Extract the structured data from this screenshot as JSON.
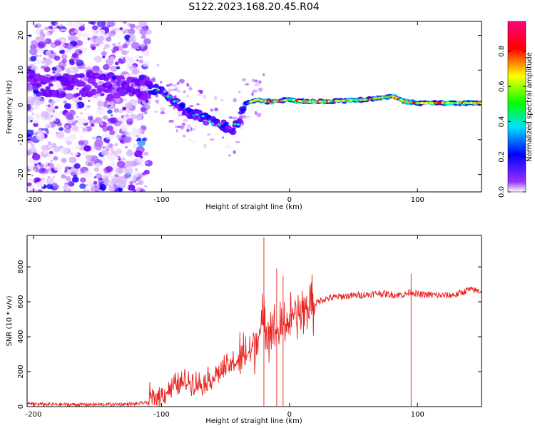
{
  "title": "S122.2023.168.20.45.R04",
  "chart_data": [
    {
      "type": "heatmap",
      "xlabel": "Height of straight line (km)",
      "ylabel": "Frequency (Hz)",
      "xlim": [
        -205,
        150
      ],
      "ylim": [
        -25,
        24
      ],
      "xticks": [
        -200,
        -100,
        0,
        100
      ],
      "yticks": [
        -20,
        -10,
        0,
        10,
        20
      ],
      "colorbar": {
        "label": "Normalized spectral amplitude",
        "range": [
          0.0,
          0.97
        ],
        "ticks": [
          0.0,
          0.2,
          0.4,
          0.6,
          0.8
        ],
        "tick_labels": [
          "0.0",
          "0.2",
          "0.4",
          "0.6",
          "0.8"
        ],
        "colormap": [
          "#ffffff",
          "#7a00ff",
          "#0000ff",
          "#00e0ff",
          "#00ff00",
          "#ffff00",
          "#ff0000",
          "#ff0080"
        ]
      },
      "ridge": {
        "x": [
          -205,
          -180,
          -150,
          -125,
          -110,
          -100,
          -90,
          -80,
          -70,
          -60,
          -50,
          -45,
          -40,
          -35,
          -30,
          -25,
          -20,
          -10,
          0,
          10,
          30,
          60,
          80,
          90,
          100,
          120,
          150
        ],
        "y": [
          7,
          5,
          6,
          5,
          5,
          4,
          1,
          -2,
          -3,
          -5,
          -6,
          -7,
          -5,
          0,
          1,
          1.5,
          1,
          1,
          1.5,
          1,
          1,
          1.5,
          2.5,
          1,
          0.5,
          0.5,
          0.5
        ]
      }
    },
    {
      "type": "line",
      "xlabel": "Height of straight line (km)",
      "ylabel": "SNR (10 * v/v)",
      "xlim": [
        -205,
        150
      ],
      "ylim": [
        0,
        980
      ],
      "xticks": [
        -200,
        -100,
        0,
        100
      ],
      "yticks": [
        0,
        200,
        400,
        600,
        800
      ],
      "color": "#e8201c",
      "series": [
        {
          "x": [
            -205,
            -180,
            -150,
            -120,
            -110,
            -100,
            -90,
            -80,
            -70,
            -60,
            -50,
            -40,
            -30,
            -25,
            -20,
            -15,
            -10,
            -5,
            0,
            5,
            10,
            15,
            20,
            25,
            30,
            40,
            50,
            60,
            70,
            80,
            90,
            95,
            100,
            110,
            120,
            130,
            140,
            150
          ],
          "y": [
            15,
            12,
            12,
            15,
            25,
            50,
            100,
            130,
            110,
            150,
            200,
            250,
            320,
            400,
            480,
            450,
            420,
            460,
            500,
            520,
            540,
            570,
            590,
            610,
            620,
            630,
            635,
            640,
            650,
            640,
            640,
            660,
            640,
            640,
            635,
            640,
            670,
            660
          ]
        }
      ],
      "spikes": [
        {
          "x": -20,
          "y": 970
        },
        {
          "x": -10,
          "y": 790
        },
        {
          "x": -5,
          "y": 750
        },
        {
          "x": 95,
          "y": 760
        }
      ]
    }
  ]
}
